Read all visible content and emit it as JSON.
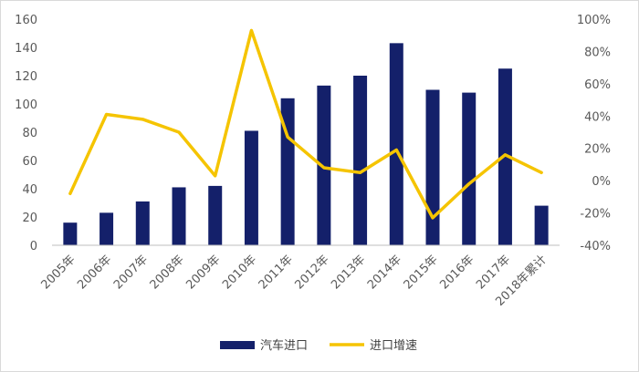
{
  "colors": {
    "bar": "#14206a",
    "line": "#f5c400",
    "axis": "#bfbfbf",
    "text": "#595959"
  },
  "chart_data": {
    "type": "bar",
    "categories": [
      "2005年",
      "2006年",
      "2007年",
      "2008年",
      "2009年",
      "2010年",
      "2011年",
      "2012年",
      "2013年",
      "2014年",
      "2015年",
      "2016年",
      "2017年",
      "2018年累计"
    ],
    "series": [
      {
        "name": "汽车进口",
        "type": "bar",
        "axis": "left",
        "values": [
          16,
          23,
          31,
          41,
          42,
          81,
          104,
          113,
          120,
          143,
          110,
          108,
          125,
          28
        ]
      },
      {
        "name": "进口增速",
        "type": "line",
        "axis": "right",
        "values": [
          -8,
          41,
          38,
          30,
          3,
          93,
          27,
          8,
          5,
          19,
          -23,
          -2,
          16,
          5
        ]
      }
    ],
    "y_left": {
      "min": 0,
      "max": 160,
      "ticks": [
        "0",
        "20",
        "40",
        "60",
        "80",
        "100",
        "120",
        "140",
        "160"
      ]
    },
    "y_right": {
      "min": -40,
      "max": 100,
      "ticks": [
        "-40%",
        "-20%",
        "0%",
        "20%",
        "40%",
        "60%",
        "80%",
        "100%"
      ]
    },
    "grid": false,
    "legend": "bottom"
  }
}
